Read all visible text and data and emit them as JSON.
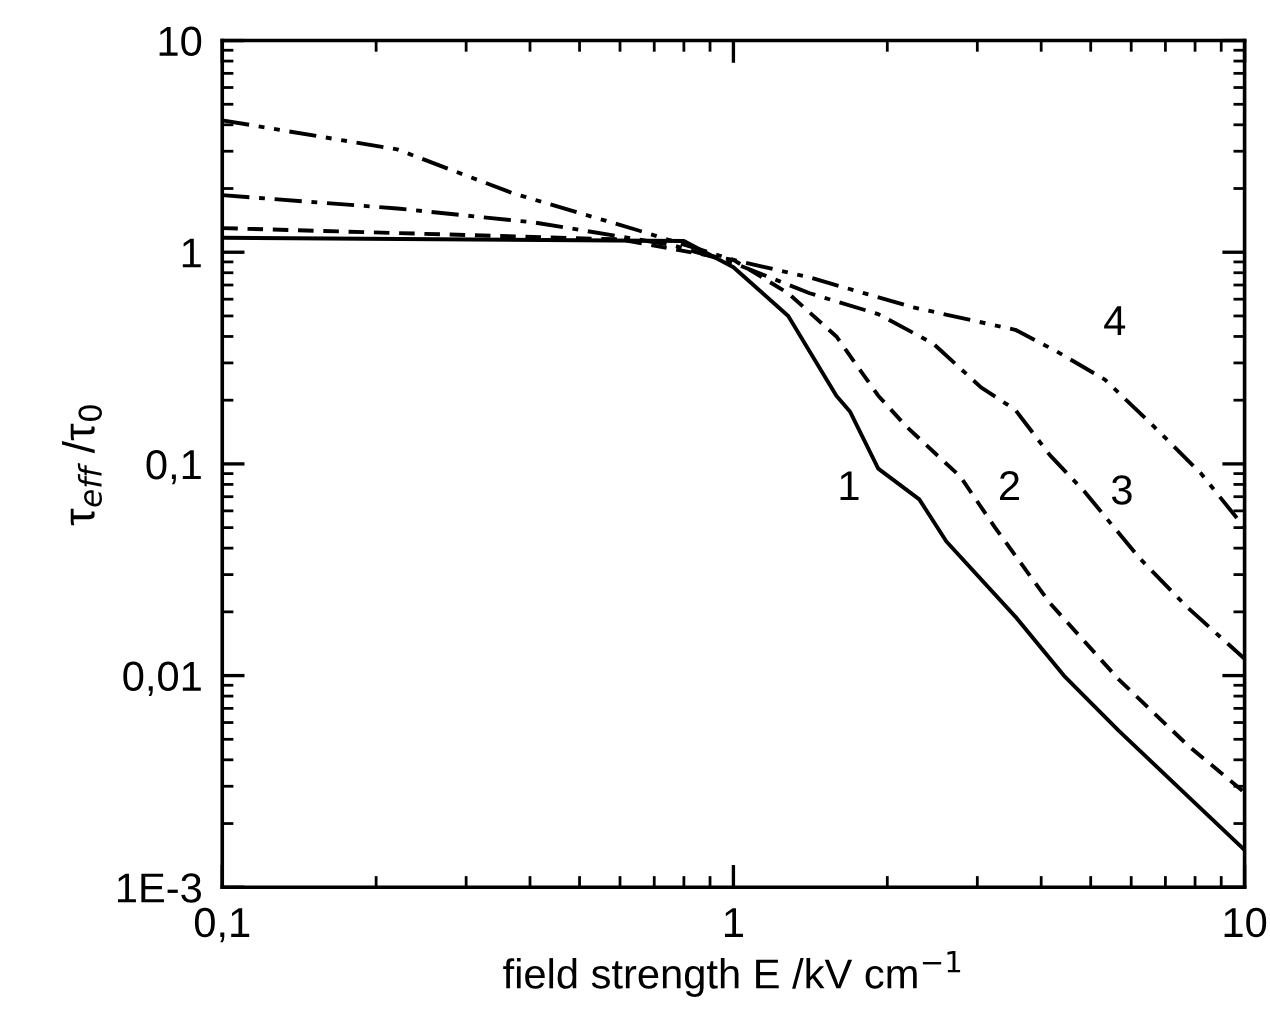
{
  "chart_data": {
    "type": "line",
    "xlabel": "field strength E /kV cm$^{−1}$",
    "ylabel": "τ$_{eff}$ /τ$_{0}$",
    "log": "xy",
    "xlim": [
      0.1,
      10
    ],
    "ylim": [
      0.001,
      10
    ],
    "xticks": [
      {
        "value": 0.1,
        "label": "0,1"
      },
      1,
      10
    ],
    "yticks": [
      {
        "value": 0.001,
        "label": "1E-3"
      },
      {
        "value": 0.01,
        "label": "0,01"
      },
      {
        "value": 0.1,
        "label": "0,1"
      },
      1,
      10
    ],
    "grid": false,
    "legend": false,
    "marker": "none",
    "series": [
      {
        "color": "#000000",
        "line_style": "solid",
        "x": [
          0.1,
          0.8,
          1.0,
          1.28,
          1.59,
          1.69,
          1.92,
          2.31,
          2.61,
          3.56,
          4.43,
          5.67,
          7.73,
          10
        ],
        "values": [
          1.17,
          1.13,
          0.85,
          0.5,
          0.21,
          0.177,
          0.095,
          0.068,
          0.043,
          0.019,
          0.01,
          0.0055,
          0.0027,
          0.0015
        ]
      },
      {
        "color": "#000000",
        "line_style": "dashed",
        "x": [
          0.1,
          0.6,
          1.0,
          1.28,
          1.59,
          1.92,
          2.18,
          2.78,
          3.25,
          4.16,
          5.67,
          7.73,
          10
        ],
        "values": [
          1.3,
          1.15,
          0.92,
          0.64,
          0.4,
          0.21,
          0.15,
          0.087,
          0.05,
          0.022,
          0.0096,
          0.0047,
          0.0028
        ]
      },
      {
        "color": "#000000",
        "line_style": "dashdot",
        "x": [
          0.1,
          0.22,
          0.41,
          0.76,
          1.0,
          1.41,
          1.92,
          2.46,
          3.05,
          3.56,
          4.16,
          4.86,
          6.22,
          7.73,
          10
        ],
        "values": [
          1.86,
          1.61,
          1.38,
          1.08,
          0.89,
          0.64,
          0.51,
          0.37,
          0.23,
          0.18,
          0.11,
          0.074,
          0.036,
          0.021,
          0.012
        ]
      },
      {
        "color": "#000000",
        "line_style": "dashdotdot",
        "x": [
          0.1,
          0.22,
          0.37,
          0.65,
          1.0,
          1.41,
          2.24,
          3.56,
          4.29,
          5.33,
          6.65,
          8.22,
          10
        ],
        "values": [
          4.2,
          3.06,
          1.9,
          1.27,
          0.92,
          0.76,
          0.55,
          0.43,
          0.34,
          0.25,
          0.15,
          0.09,
          0.05
        ]
      }
    ],
    "annotations": [
      "1",
      "2",
      "3",
      "4"
    ]
  }
}
